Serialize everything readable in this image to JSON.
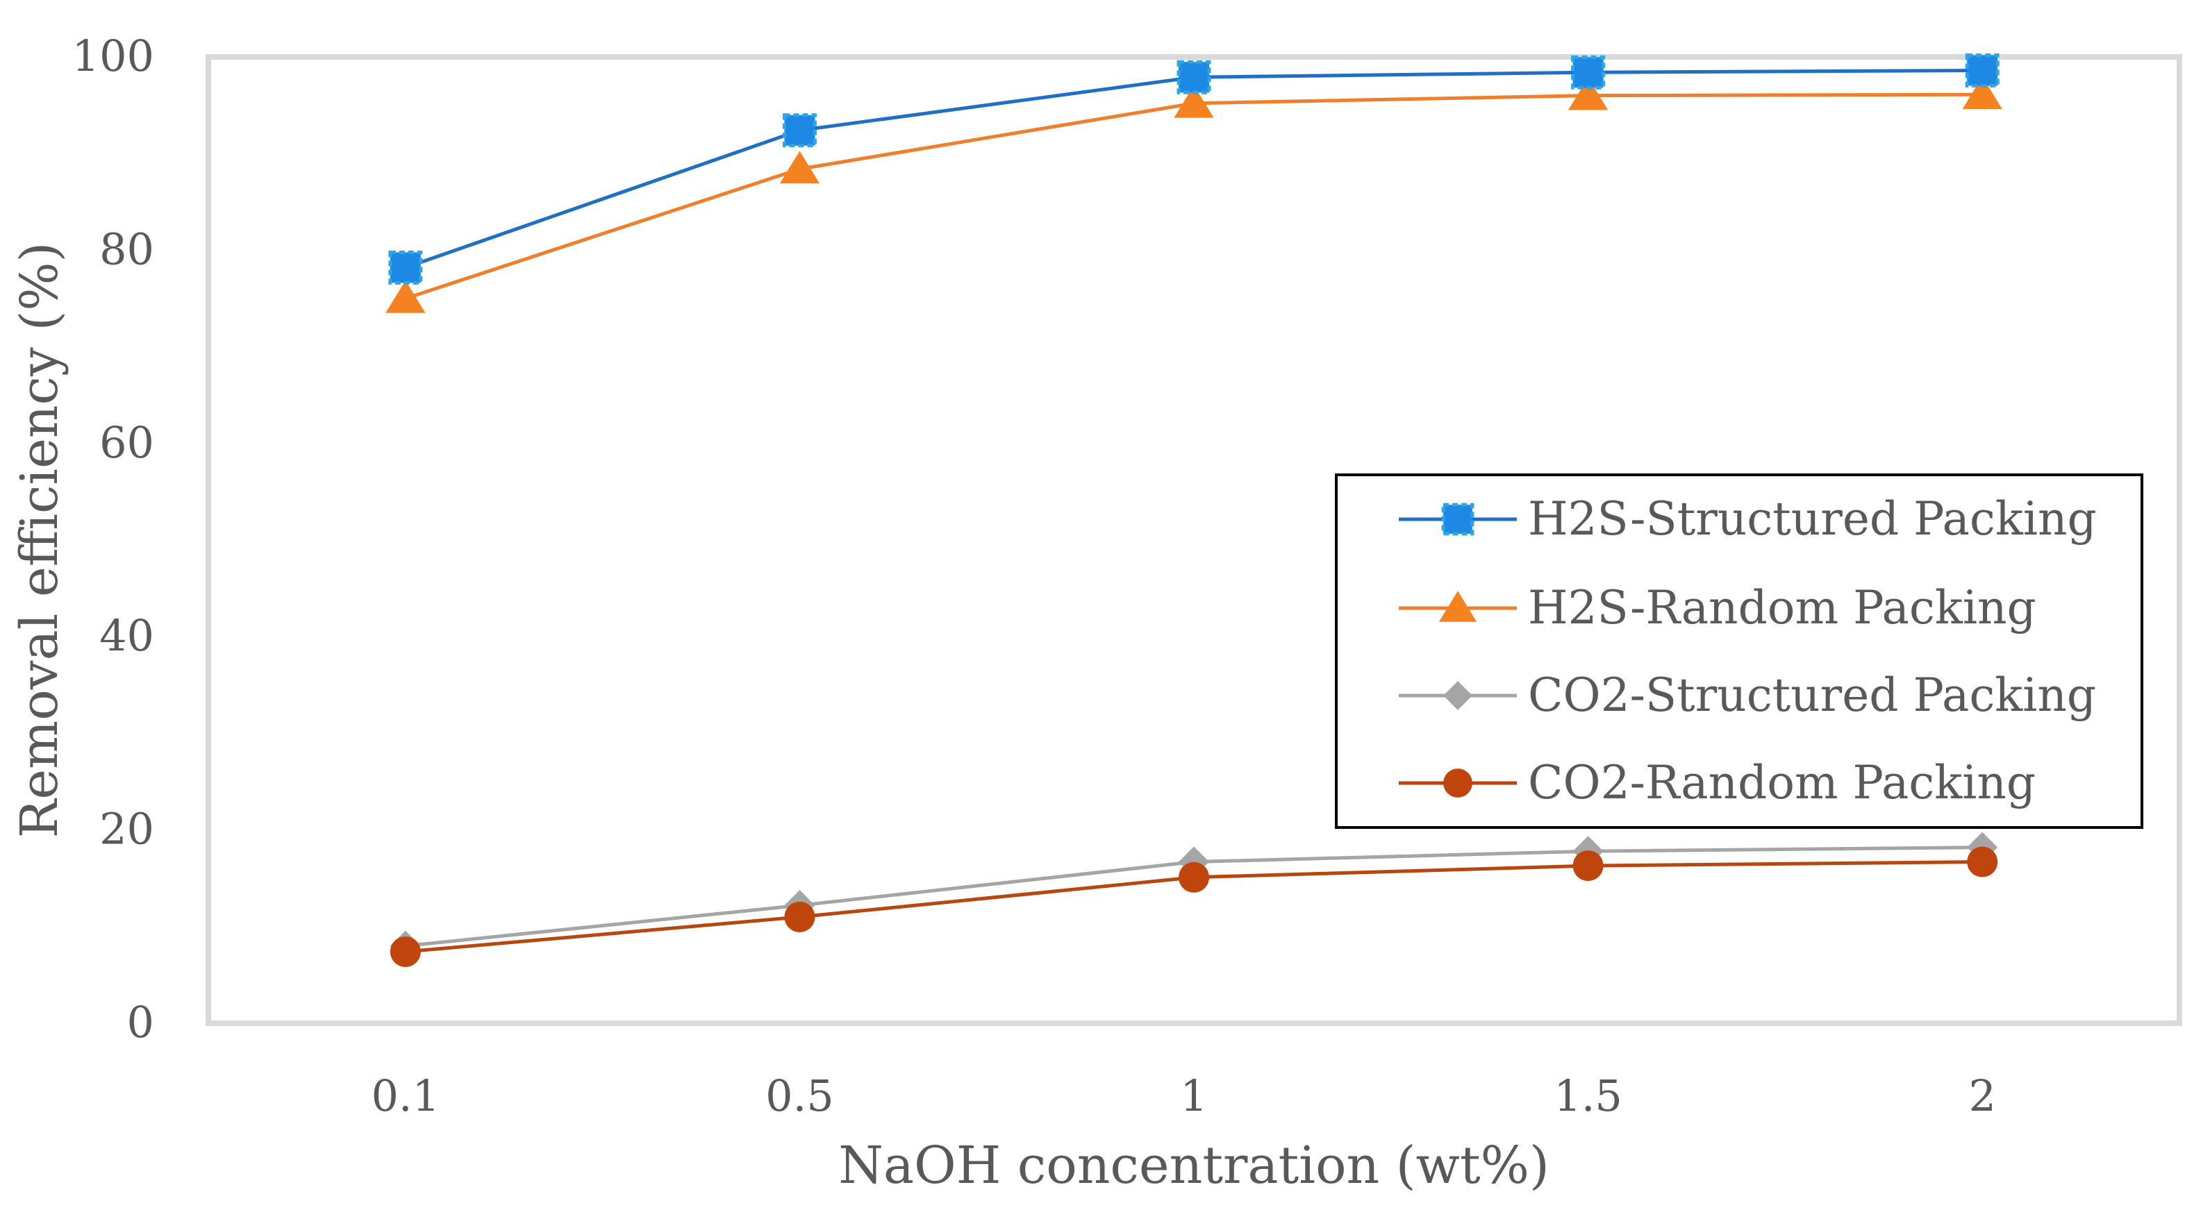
{
  "chart_data": {
    "type": "line",
    "title": "",
    "xlabel": "NaOH concentration (wt%)",
    "ylabel": "Removal efficiency (%)",
    "categories": [
      "0.1",
      "0.5",
      "1",
      "1.5",
      "2"
    ],
    "ylim": [
      0,
      100
    ],
    "yticks": [
      0,
      20,
      40,
      60,
      80,
      100
    ],
    "ytick_labels": [
      "0",
      "20",
      "40",
      "60",
      "80",
      "100"
    ],
    "grid": false,
    "legend_position": "right",
    "series": [
      {
        "name": "H2S-Structured Packing",
        "values": [
          78.2,
          92.4,
          97.9,
          98.4,
          98.6
        ],
        "color": "#1f6fc5",
        "marker": "square",
        "marker_color": "#1e88e5"
      },
      {
        "name": "H2S-Random Packing",
        "values": [
          75.0,
          88.4,
          95.2,
          96.0,
          96.1
        ],
        "color": "#f07f2c",
        "marker": "triangle",
        "marker_color": "#f58220"
      },
      {
        "name": "CO2-Structured Packing",
        "values": [
          8.0,
          12.2,
          16.7,
          17.8,
          18.2
        ],
        "color": "#a5a5a5",
        "marker": "diamond",
        "marker_color": "#a5a5a5"
      },
      {
        "name": "CO2-Random Packing",
        "values": [
          7.4,
          11.0,
          15.1,
          16.3,
          16.7
        ],
        "color": "#b8460f",
        "marker": "circle",
        "marker_color": "#c0450d"
      }
    ],
    "colors": {
      "axis": "#d9d9d9",
      "text": "#595959",
      "legend_border": "#000000"
    }
  }
}
